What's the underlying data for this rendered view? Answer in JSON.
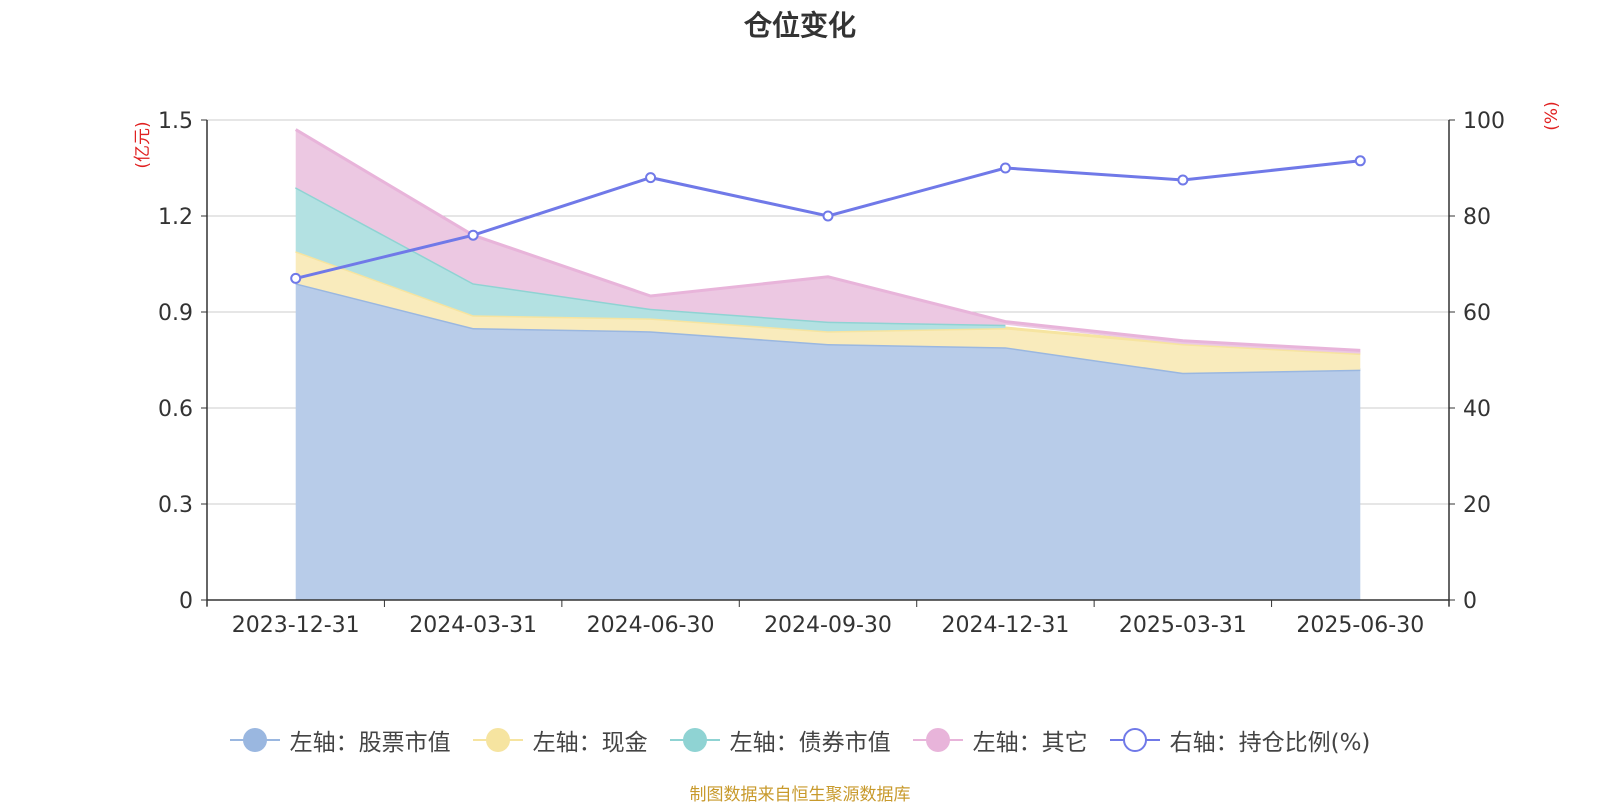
{
  "title": "仓位变化",
  "source": "制图数据来自恒生聚源数据库",
  "chart_data": {
    "type": "area",
    "categories": [
      "2023-12-31",
      "2024-03-31",
      "2024-06-30",
      "2024-09-30",
      "2024-12-31",
      "2025-03-31",
      "2025-06-30"
    ],
    "left_axis": {
      "label": "(亿元)",
      "ylim": [
        0,
        1.5
      ],
      "ticks": [
        "0",
        "0.3",
        "0.6",
        "0.9",
        "1.2",
        "1.5"
      ]
    },
    "right_axis": {
      "label": "(%)",
      "ylim": [
        0,
        100
      ],
      "ticks": [
        "0",
        "20",
        "40",
        "60",
        "80",
        "100"
      ]
    },
    "grid": true,
    "legend_position": "bottom",
    "stacked": true,
    "series": [
      {
        "name": "左轴：股票市值",
        "axis": "left",
        "type": "area",
        "color": "#9ab7e0",
        "fill": "#b8cce9",
        "values": [
          0.99,
          0.85,
          0.84,
          0.8,
          0.79,
          0.71,
          0.72
        ]
      },
      {
        "name": "左轴：现金",
        "axis": "left",
        "type": "area",
        "color": "#f6e4a0",
        "fill": "#f9ebbc",
        "values": [
          0.1,
          0.04,
          0.04,
          0.04,
          0.06,
          0.09,
          0.05
        ]
      },
      {
        "name": "左轴：债券市值",
        "axis": "left",
        "type": "area",
        "color": "#8fd3d3",
        "fill": "#b3e1e2",
        "values": [
          0.2,
          0.1,
          0.03,
          0.03,
          0.01,
          null,
          null
        ]
      },
      {
        "name": "左轴：其它",
        "axis": "left",
        "type": "area",
        "color": "#e8b4da",
        "fill": "#ecc8e2",
        "values": [
          0.18,
          0.15,
          0.04,
          0.14,
          0.01,
          0.01,
          0.01
        ]
      },
      {
        "name": "右轴：持仓比例(%)",
        "axis": "right",
        "type": "line",
        "color": "#7079e8",
        "values": [
          67,
          76,
          88,
          80,
          90,
          87.5,
          91.5
        ]
      }
    ]
  }
}
